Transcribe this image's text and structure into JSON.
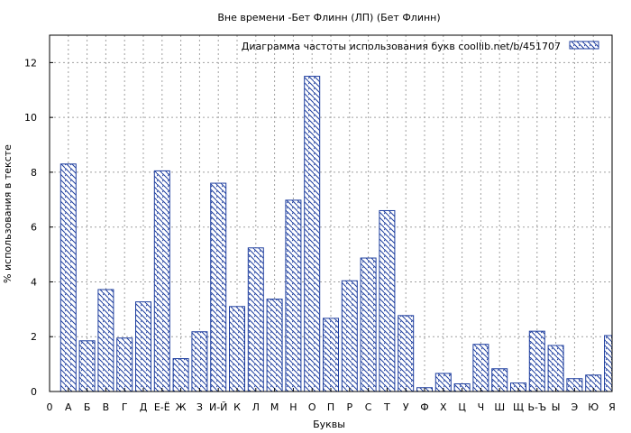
{
  "chart_data": {
    "type": "bar",
    "title": "Вне времени -Бет Флинн (ЛП) (Бет Флинн)",
    "xlabel": "Буквы",
    "ylabel": "% использования в тексте",
    "legend_label": "Диаграмма частоты использования букв  coollib.net/b/451707",
    "legend_position": "top-right",
    "grid": true,
    "ylim": [
      0,
      13
    ],
    "yticks": [
      0,
      2,
      4,
      6,
      8,
      10,
      12
    ],
    "xtick_labels": [
      "0",
      "А",
      "Б",
      "В",
      "Г",
      "Д",
      "Е-Ё",
      "Ж",
      "З",
      "И-Й",
      "К",
      "Л",
      "М",
      "Н",
      "О",
      "П",
      "Р",
      "С",
      "Т",
      "У",
      "Ф",
      "Х",
      "Ц",
      "Ч",
      "Ш",
      "Щ",
      "Ь-Ъ",
      "Ы",
      "Э",
      "Ю",
      "Я"
    ],
    "categories": [
      "А",
      "Б",
      "В",
      "Г",
      "Д",
      "Е-Ё",
      "Ж",
      "З",
      "И-Й",
      "К",
      "Л",
      "М",
      "Н",
      "О",
      "П",
      "Р",
      "С",
      "Т",
      "У",
      "Ф",
      "Х",
      "Ц",
      "Ч",
      "Ш",
      "Щ",
      "Ь-Ъ",
      "Ы",
      "Э",
      "Ю",
      "Я"
    ],
    "values": [
      8.3,
      1.85,
      3.72,
      1.95,
      3.27,
      8.05,
      1.2,
      2.18,
      7.6,
      3.1,
      5.24,
      3.37,
      6.98,
      11.5,
      2.67,
      4.04,
      4.87,
      6.6,
      2.77,
      0.14,
      0.66,
      0.28,
      1.72,
      0.83,
      0.31,
      2.2,
      1.68,
      0.47,
      0.6,
      2.04
    ],
    "colors": {
      "bar_stroke": "#1f3f9f",
      "hatch": "#1f3f9f",
      "grid": "#a0a0a0",
      "axis": "#000000"
    }
  }
}
